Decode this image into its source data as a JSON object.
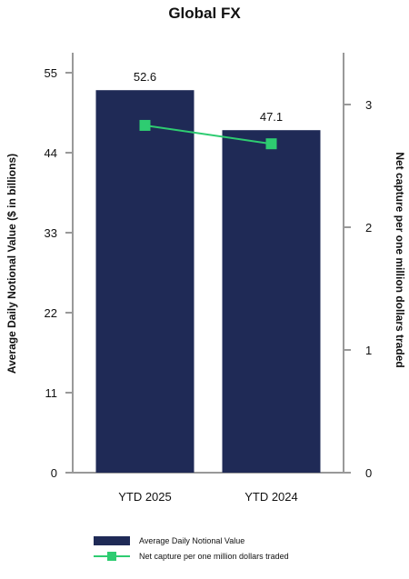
{
  "chart_data": {
    "type": "bar",
    "title": "Global FX",
    "categories": [
      "YTD 2025",
      "YTD 2024"
    ],
    "series": [
      {
        "name": "Average Daily Notional Value",
        "kind": "bar",
        "axis": "left",
        "color": "#1f2a56",
        "values": [
          52.6,
          47.1
        ],
        "data_labels": [
          "52.6",
          "47.1"
        ]
      },
      {
        "name": "Net capture per one million dollars traded",
        "kind": "line",
        "axis": "right",
        "color": "#2ecc71",
        "marker": "square",
        "values": [
          2.83,
          2.68
        ]
      }
    ],
    "y_left": {
      "label": "Average Daily Notional Value ($ in billions)",
      "ylim": [
        0,
        55
      ],
      "ticks": [
        0,
        11,
        22,
        33,
        44,
        55
      ],
      "tick_labels": [
        "0",
        "11",
        "22",
        "33",
        "44",
        "55"
      ]
    },
    "y_right": {
      "label": "Net capture per one million dollars traded",
      "ylim": [
        0,
        3.4
      ],
      "ticks": [
        0,
        1,
        2,
        3
      ],
      "tick_labels": [
        "0",
        "1",
        "2",
        "3"
      ]
    },
    "grid": false,
    "legend_position": "bottom"
  }
}
